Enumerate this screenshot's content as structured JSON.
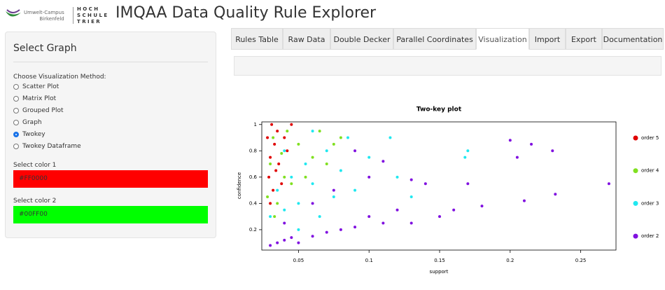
{
  "header": {
    "logo_left": [
      "Umwelt-Campus",
      "Birkenfeld"
    ],
    "logo_right": [
      "H O C H",
      "S C H U L E",
      "T R I E R"
    ],
    "title": "IMQAA Data Quality Rule Explorer"
  },
  "sidebar": {
    "heading": "Select Graph",
    "method_label": "Choose Visualization Method:",
    "options": [
      "Scatter Plot",
      "Matrix Plot",
      "Grouped Plot",
      "Graph",
      "Twokey",
      "Twokey Dataframe"
    ],
    "selected": 4,
    "color1_label": "Select color 1",
    "color1": "#FF0000",
    "color2_label": "Select color 2",
    "color2": "#00FF00"
  },
  "tabs": {
    "items": [
      "Rules Table",
      "Raw Data",
      "Double Decker",
      "Parallel Coordinates",
      "Visualization",
      "Import",
      "Export",
      "Documentation"
    ],
    "active": 4
  },
  "chart_data": {
    "type": "scatter",
    "title": "Two-key plot",
    "x_label": "support",
    "y_label": "confidence",
    "xlim": [
      0.024,
      0.275
    ],
    "ylim": [
      0.045,
      1.02
    ],
    "xticks": [
      0.05,
      0.1,
      0.15,
      0.2,
      0.25
    ],
    "yticks": [
      0.2,
      0.4,
      0.6,
      0.8,
      1
    ],
    "legend": "right",
    "series": [
      {
        "name": "order 5",
        "color": "#e00000",
        "x": [
          0.028,
          0.029,
          0.03,
          0.031,
          0.032,
          0.033,
          0.034,
          0.035,
          0.036,
          0.038,
          0.04,
          0.042,
          0.045,
          0.03
        ],
        "values": [
          0.9,
          0.6,
          0.75,
          1,
          0.5,
          0.85,
          0.65,
          0.95,
          0.7,
          0.55,
          0.9,
          0.8,
          1,
          0.4
        ]
      },
      {
        "name": "order 4",
        "color": "#80e020",
        "x": [
          0.028,
          0.03,
          0.032,
          0.035,
          0.04,
          0.042,
          0.045,
          0.05,
          0.055,
          0.06,
          0.065,
          0.07,
          0.075,
          0.08,
          0.033,
          0.038
        ],
        "values": [
          0.45,
          0.7,
          0.9,
          0.4,
          0.6,
          0.95,
          0.55,
          0.85,
          0.6,
          0.75,
          0.95,
          0.7,
          0.85,
          0.9,
          0.3,
          0.78
        ]
      },
      {
        "name": "order 3",
        "color": "#20e8f0",
        "x": [
          0.03,
          0.035,
          0.04,
          0.045,
          0.05,
          0.055,
          0.06,
          0.065,
          0.07,
          0.075,
          0.08,
          0.085,
          0.09,
          0.1,
          0.115,
          0.12,
          0.13,
          0.17,
          0.168,
          0.05,
          0.04,
          0.06
        ],
        "values": [
          0.3,
          0.5,
          0.35,
          0.6,
          0.4,
          0.7,
          0.55,
          0.3,
          0.8,
          0.45,
          0.65,
          0.9,
          0.5,
          0.75,
          0.9,
          0.6,
          0.45,
          0.8,
          0.75,
          0.2,
          0.8,
          0.95
        ]
      },
      {
        "name": "order 2",
        "color": "#8010e0",
        "x": [
          0.03,
          0.035,
          0.04,
          0.045,
          0.05,
          0.06,
          0.07,
          0.08,
          0.09,
          0.1,
          0.11,
          0.12,
          0.13,
          0.14,
          0.15,
          0.16,
          0.17,
          0.18,
          0.2,
          0.205,
          0.21,
          0.215,
          0.23,
          0.232,
          0.27,
          0.09,
          0.11,
          0.1,
          0.06,
          0.13,
          0.075,
          0.04
        ],
        "values": [
          0.08,
          0.1,
          0.12,
          0.14,
          0.1,
          0.15,
          0.18,
          0.2,
          0.22,
          0.3,
          0.25,
          0.35,
          0.25,
          0.55,
          0.3,
          0.35,
          0.55,
          0.38,
          0.88,
          0.75,
          0.42,
          0.85,
          0.8,
          0.47,
          0.55,
          0.8,
          0.72,
          0.6,
          0.4,
          0.58,
          0.5,
          0.25
        ]
      }
    ]
  }
}
